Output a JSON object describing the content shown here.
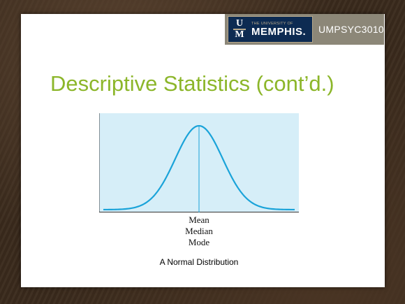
{
  "header": {
    "logo_small": "THE UNIVERSITY OF",
    "logo_big": "MEMPHIS.",
    "logo_mark_top": "U",
    "logo_mark_bottom": "M",
    "course_code": "UMPSYC3010"
  },
  "slide": {
    "title": "Descriptive Statistics (cont’d.)"
  },
  "figure": {
    "center_labels": [
      "Mean",
      "Median",
      "Mode"
    ],
    "caption": "A Normal Distribution"
  },
  "colors": {
    "title": "#8cb62a",
    "curve": "#1aa3d9",
    "plot_bg": "#d6eef8",
    "header_bg": "#8c8778",
    "logo_bg": "#0d2b52"
  }
}
